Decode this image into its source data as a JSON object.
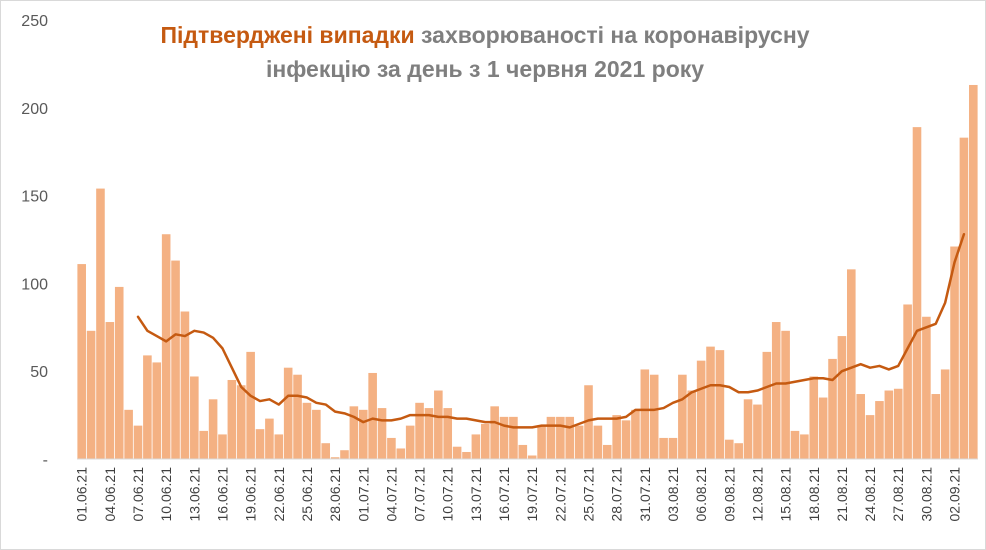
{
  "chart_data": {
    "type": "bar",
    "title_highlight": "Підтверджені випадки",
    "title_rest_line1": "захворюваності на коронавірусну",
    "title_line2": "інфекцію за день з 1 червня 2021 року",
    "ylim": [
      0,
      250
    ],
    "yticks": [
      "-",
      "50",
      "100",
      "150",
      "200",
      "250"
    ],
    "ytick_values": [
      0,
      50,
      100,
      150,
      200,
      250
    ],
    "grid": false,
    "bar_color": "#f4b183",
    "line_color": "#c55a11",
    "xtick_labels": [
      "01.06.21",
      "04.06.21",
      "07.06.21",
      "10.06.21",
      "13.06.21",
      "16.06.21",
      "19.06.21",
      "22.06.21",
      "25.06.21",
      "28.06.21",
      "01.07.21",
      "04.07.21",
      "07.07.21",
      "10.07.21",
      "13.07.21",
      "16.07.21",
      "19.07.21",
      "22.07.21",
      "25.07.21",
      "28.07.21",
      "31.07.21",
      "03.08.21",
      "06.08.21",
      "09.08.21",
      "12.08.21",
      "15.08.21",
      "18.08.21",
      "21.08.21",
      "24.08.21",
      "27.08.21",
      "30.08.21",
      "02.09.21"
    ],
    "series": [
      {
        "type": "bar",
        "values": [
          111,
          73,
          154,
          78,
          98,
          28,
          19,
          59,
          55,
          128,
          113,
          84,
          47,
          16,
          34,
          14,
          45,
          42,
          61,
          17,
          23,
          14,
          52,
          48,
          32,
          28,
          9,
          1,
          5,
          30,
          28,
          49,
          29,
          12,
          6,
          19,
          32,
          29,
          39,
          29,
          7,
          4,
          14,
          20,
          30,
          24,
          24,
          8,
          2,
          19,
          24,
          24,
          24,
          19,
          42,
          19,
          8,
          25,
          22,
          28,
          51,
          48,
          12,
          12,
          48,
          39,
          56,
          64,
          62,
          11,
          9,
          34,
          31,
          61,
          78,
          73,
          16,
          14,
          47,
          35,
          57,
          70,
          108,
          37,
          25,
          33,
          39,
          40,
          88,
          189,
          81,
          37,
          51,
          121,
          183,
          213
        ]
      },
      {
        "type": "line",
        "start_index": 6,
        "values": [
          81,
          73,
          70,
          67,
          71,
          70,
          73,
          72,
          69,
          63,
          52,
          41,
          36,
          33,
          34,
          31,
          36,
          36,
          35,
          32,
          31,
          27,
          26,
          24,
          21,
          23,
          22,
          22,
          23,
          25,
          25,
          25,
          24,
          24,
          23,
          23,
          22,
          21,
          21,
          19,
          18,
          18,
          18,
          19,
          19,
          19,
          18,
          20,
          22,
          23,
          23,
          23,
          24,
          28,
          28,
          28,
          29,
          32,
          34,
          38,
          40,
          42,
          42,
          41,
          38,
          38,
          39,
          41,
          43,
          43,
          44,
          45,
          46,
          46,
          45,
          50,
          52,
          54,
          52,
          53,
          51,
          53,
          63,
          73,
          75,
          77,
          89,
          112,
          128
        ]
      }
    ]
  }
}
